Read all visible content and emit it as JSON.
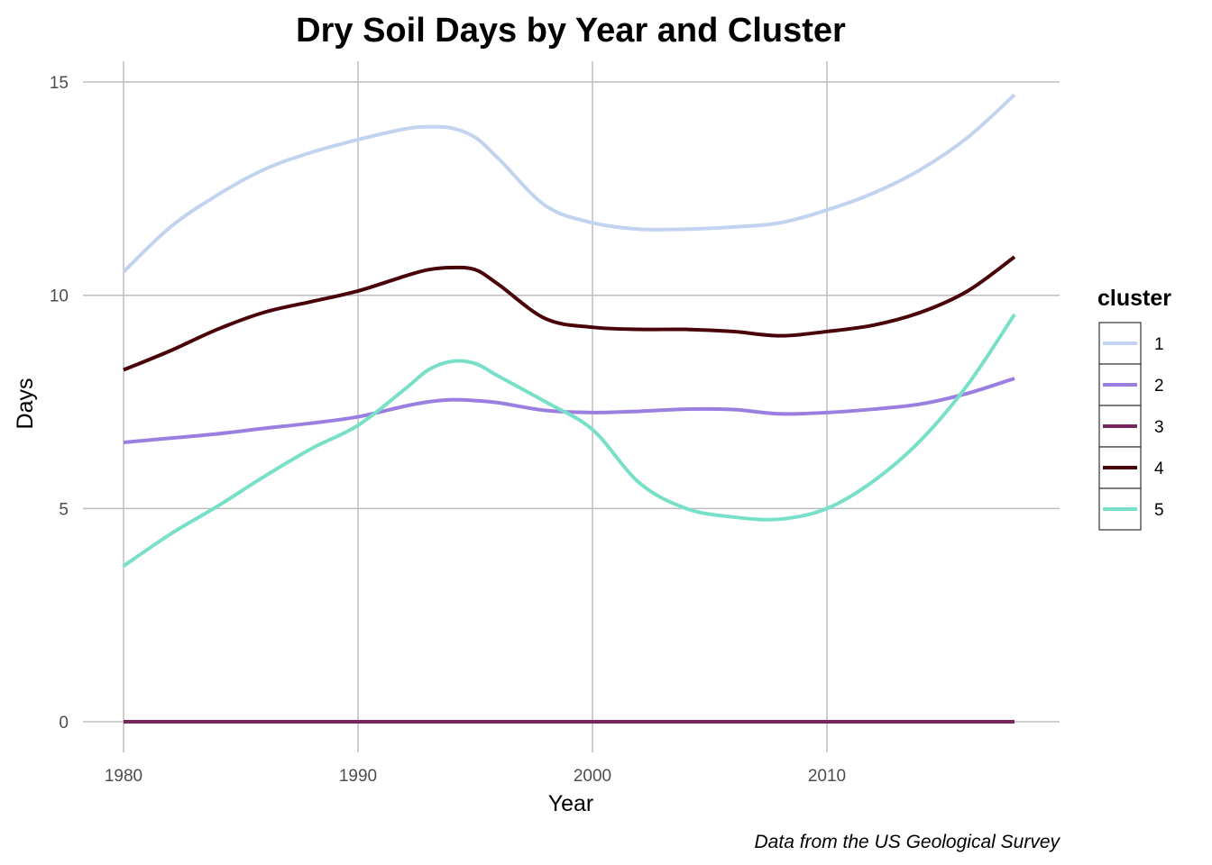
{
  "chart_data": {
    "type": "line",
    "title": "Dry Soil Days by Year and Cluster",
    "xlabel": "Year",
    "ylabel": "Days",
    "caption": "Data from the US Geological Survey",
    "xlim": [
      1980,
      2018
    ],
    "ylim": [
      0,
      15
    ],
    "x_ticks": [
      1980,
      1990,
      2000,
      2010
    ],
    "y_ticks": [
      0,
      5,
      10,
      15
    ],
    "grid": true,
    "legend": {
      "title": "cluster",
      "position": "right"
    },
    "x": [
      1980,
      1982,
      1984,
      1986,
      1988,
      1990,
      1992,
      1993,
      1994,
      1995,
      1996,
      1998,
      2000,
      2002,
      2004,
      2006,
      2008,
      2010,
      2012,
      2014,
      2016,
      2018
    ],
    "series": [
      {
        "name": "1",
        "color": "#c2d3f0",
        "values": [
          10.55,
          11.6,
          12.35,
          12.95,
          13.35,
          13.65,
          13.9,
          13.95,
          13.92,
          13.7,
          13.2,
          12.1,
          11.7,
          11.55,
          11.55,
          11.6,
          11.7,
          12.0,
          12.4,
          12.95,
          13.7,
          14.7
        ]
      },
      {
        "name": "2",
        "color": "#9a7fe0",
        "values": [
          6.55,
          6.65,
          6.75,
          6.88,
          7.0,
          7.15,
          7.4,
          7.5,
          7.55,
          7.53,
          7.48,
          7.3,
          7.25,
          7.28,
          7.33,
          7.32,
          7.22,
          7.25,
          7.33,
          7.45,
          7.7,
          8.05
        ]
      },
      {
        "name": "3",
        "color": "#7b2560",
        "values": [
          0,
          0,
          0,
          0,
          0,
          0,
          0,
          0,
          0,
          0,
          0,
          0,
          0,
          0,
          0,
          0,
          0,
          0,
          0,
          0,
          0,
          0
        ]
      },
      {
        "name": "4",
        "color": "#4a0209",
        "values": [
          8.25,
          8.7,
          9.2,
          9.6,
          9.85,
          10.1,
          10.45,
          10.6,
          10.65,
          10.6,
          10.25,
          9.45,
          9.25,
          9.2,
          9.2,
          9.15,
          9.05,
          9.15,
          9.3,
          9.6,
          10.1,
          10.9
        ]
      },
      {
        "name": "5",
        "color": "#78e0c8",
        "values": [
          3.65,
          4.4,
          5.05,
          5.75,
          6.4,
          6.95,
          7.8,
          8.25,
          8.45,
          8.4,
          8.1,
          7.5,
          6.85,
          5.6,
          5.0,
          4.8,
          4.75,
          5.0,
          5.65,
          6.6,
          7.9,
          9.55
        ]
      }
    ]
  }
}
